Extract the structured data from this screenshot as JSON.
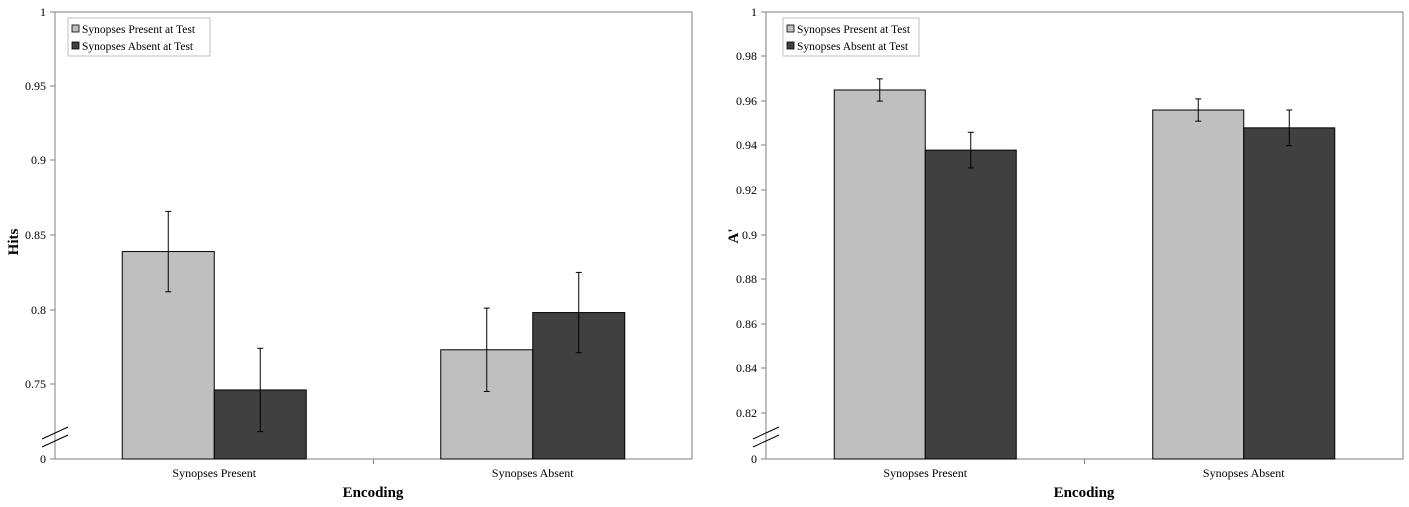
{
  "colors": {
    "present_bar": "#bfbfbf",
    "absent_bar": "#404040",
    "axis": "#7f7f7f",
    "error_bar": "#000000"
  },
  "chart_data": [
    {
      "type": "bar",
      "xlabel": "Encoding",
      "ylabel": "Hits",
      "categories": [
        "Synopses Present",
        "Synopses Absent"
      ],
      "series": [
        {
          "name": "Synopses Present at Test",
          "values": [
            0.839,
            0.773
          ],
          "errors": [
            0.027,
            0.028
          ]
        },
        {
          "name": "Synopses Absent at Test",
          "values": [
            0.746,
            0.798
          ],
          "errors": [
            0.028,
            0.027
          ]
        }
      ],
      "yticks": [
        "0",
        "0.75",
        "0.8",
        "0.85",
        "0.9",
        "0.95",
        "1"
      ],
      "ylim": [
        0.72,
        1.0
      ],
      "axis_break": true,
      "legend": "top-left",
      "grid": false
    },
    {
      "type": "bar",
      "xlabel": "Encoding",
      "ylabel": "A'",
      "categories": [
        "Synopses Present",
        "Synopses Absent"
      ],
      "series": [
        {
          "name": "Synopses Present at Test",
          "values": [
            0.965,
            0.956
          ],
          "errors": [
            0.005,
            0.005
          ]
        },
        {
          "name": "Synopses Absent at Test",
          "values": [
            0.938,
            0.948
          ],
          "errors": [
            0.008,
            0.008
          ]
        }
      ],
      "yticks": [
        "0",
        "0.82",
        "0.84",
        "0.86",
        "0.88",
        "0.9",
        "0.92",
        "0.94",
        "0.96",
        "0.98",
        "1"
      ],
      "ylim": [
        0.8,
        1.0
      ],
      "axis_break": true,
      "legend": "top-left",
      "grid": false
    }
  ]
}
